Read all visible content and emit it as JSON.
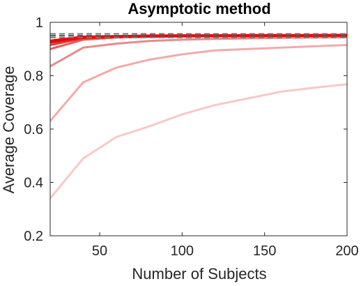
{
  "chart_data": {
    "type": "line",
    "title": "Asymptotic method",
    "xlabel": "Number of Subjects",
    "ylabel": "Average Coverage",
    "xlim": [
      20,
      200
    ],
    "ylim": [
      0.2,
      1.0
    ],
    "xticks": [
      50,
      100,
      150,
      200
    ],
    "yticks": [
      0.2,
      0.4,
      0.6,
      0.8,
      1
    ],
    "ytick_labels": [
      "0.2",
      "0.4",
      "0.6",
      "0.8",
      "1"
    ],
    "grid": false,
    "legend": "none",
    "x": [
      20,
      40,
      60,
      80,
      100,
      120,
      140,
      160,
      180,
      200
    ],
    "series": [
      {
        "values": [
          0.34,
          0.49,
          0.57,
          0.61,
          0.655,
          0.69,
          0.715,
          0.74,
          0.755,
          0.768
        ],
        "color": "#f8c8c8",
        "width": 3
      },
      {
        "values": [
          0.63,
          0.775,
          0.83,
          0.86,
          0.88,
          0.895,
          0.9,
          0.905,
          0.91,
          0.915
        ],
        "color": "#f2aaaa",
        "width": 3
      },
      {
        "values": [
          0.835,
          0.905,
          0.92,
          0.93,
          0.935,
          0.938,
          0.94,
          0.942,
          0.943,
          0.944
        ],
        "color": "#e98a8a",
        "width": 3
      },
      {
        "values": [
          0.9,
          0.935,
          0.943,
          0.946,
          0.947,
          0.948,
          0.948,
          0.949,
          0.949,
          0.95
        ],
        "color": "#e85a5a",
        "width": 3
      },
      {
        "values": [
          0.915,
          0.94,
          0.945,
          0.947,
          0.948,
          0.949,
          0.949,
          0.95,
          0.95,
          0.95
        ],
        "color": "#e63a3a",
        "width": 3
      },
      {
        "values": [
          0.925,
          0.943,
          0.946,
          0.948,
          0.949,
          0.95,
          0.95,
          0.95,
          0.951,
          0.951
        ],
        "color": "#e61c1c",
        "width": 4
      },
      {
        "values": [
          0.93,
          0.945,
          0.947,
          0.949,
          0.95,
          0.95,
          0.951,
          0.951,
          0.951,
          0.952
        ],
        "color": "#ee0000",
        "width": 4
      }
    ],
    "reference_lines": [
      {
        "y": 0.95,
        "color": "#555555",
        "style": "dashed"
      },
      {
        "y": 0.957,
        "color": "#777777",
        "style": "dashed"
      },
      {
        "y": 0.943,
        "color": "#777777",
        "style": "dashed"
      }
    ]
  }
}
